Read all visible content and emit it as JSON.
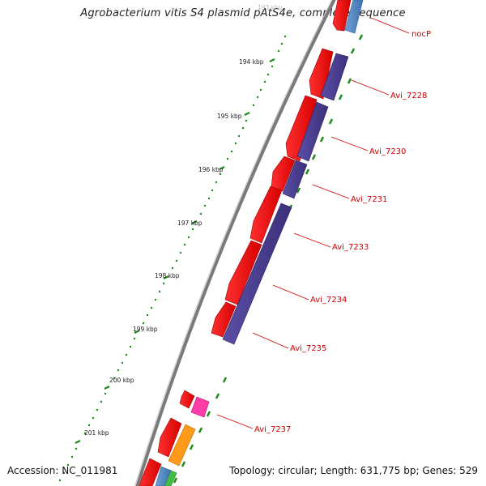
{
  "title": "Agrobacterium vitis S4 plasmid pAtS4e, complete sequence",
  "footer": {
    "accession": "Accession: NC_011981",
    "topology": "Topology: circular; Length: 631,775 bp; Genes: 529"
  },
  "scale_labels": [
    "193 kbp",
    "194 kbp",
    "195 kbp",
    "196 kbp",
    "197 kbp",
    "198 kbp",
    "199 kbp",
    "200 kbp",
    "201 kbp"
  ],
  "gene_labels": [
    "nocP",
    "Avi_7228",
    "Avi_7230",
    "Avi_7231",
    "Avi_7233",
    "Avi_7234",
    "Avi_7235",
    "Avi_7237"
  ],
  "colors": {
    "backbone": "#808080",
    "forward_gene": "#ff0000",
    "reverse_gene": "#483d8b",
    "label": "#cc0000",
    "tick": "#1a8a1a"
  },
  "legend": {}
}
